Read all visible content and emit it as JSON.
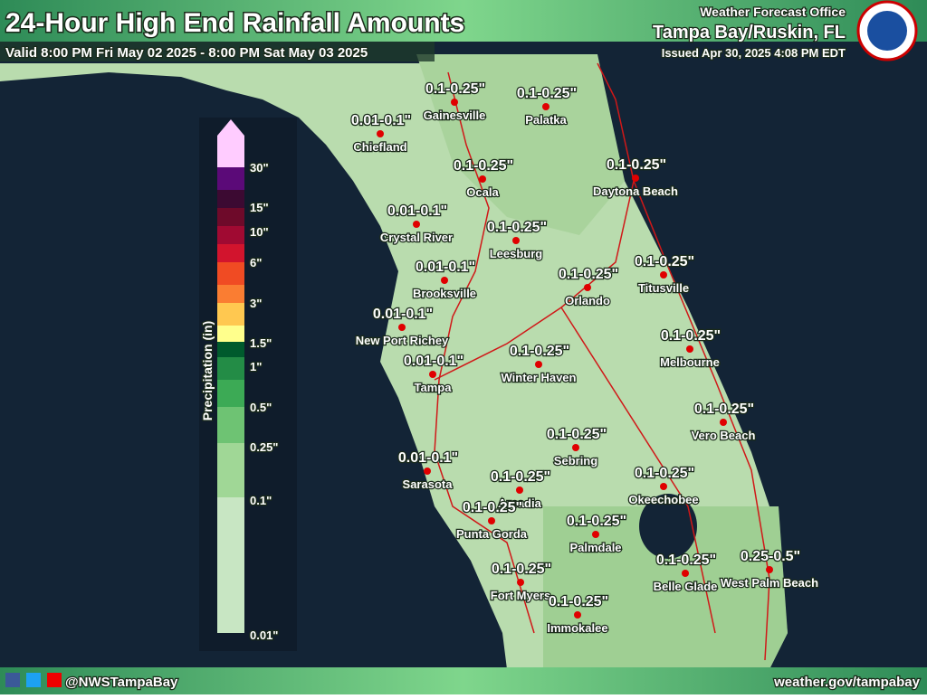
{
  "header": {
    "title": "24-Hour High End Rainfall Amounts",
    "valid": "Valid 8:00 PM Fri May 02 2025 - 8:00 PM Sat May 03 2025",
    "office": "Weather Forecast Office",
    "location": "Tampa Bay/Ruskin, FL",
    "issued": "Issued Apr 30, 2025 4:08 PM EDT"
  },
  "legend": {
    "title": "Precipitation (in)",
    "labels": [
      "30\"",
      "15\"",
      "10\"",
      "6\"",
      "3\"",
      "1.5\"",
      "1\"",
      "0.5\"",
      "0.25\"",
      "0.1\"",
      "0.01\""
    ]
  },
  "cities": [
    {
      "name": "Gainesville",
      "amount": "0.1-0.25\""
    },
    {
      "name": "Palatka",
      "amount": "0.1-0.25\""
    },
    {
      "name": "Chiefland",
      "amount": "0.01-0.1\""
    },
    {
      "name": "Ocala",
      "amount": "0.1-0.25\""
    },
    {
      "name": "Daytona Beach",
      "amount": "0.1-0.25\""
    },
    {
      "name": "Crystal River",
      "amount": "0.01-0.1\""
    },
    {
      "name": "Leesburg",
      "amount": "0.1-0.25\""
    },
    {
      "name": "Brooksville",
      "amount": "0.01-0.1\""
    },
    {
      "name": "Orlando",
      "amount": "0.1-0.25\""
    },
    {
      "name": "Titusville",
      "amount": "0.1-0.25\""
    },
    {
      "name": "New Port Richey",
      "amount": "0.01-0.1\""
    },
    {
      "name": "Winter Haven",
      "amount": "0.1-0.25\""
    },
    {
      "name": "Melbourne",
      "amount": "0.1-0.25\""
    },
    {
      "name": "Tampa",
      "amount": "0.01-0.1\""
    },
    {
      "name": "Vero Beach",
      "amount": "0.1-0.25\""
    },
    {
      "name": "Sebring",
      "amount": "0.1-0.25\""
    },
    {
      "name": "Sarasota",
      "amount": "0.01-0.1\""
    },
    {
      "name": "Arcadia",
      "amount": "0.1-0.25\""
    },
    {
      "name": "Okeechobee",
      "amount": "0.1-0.25\""
    },
    {
      "name": "Punta Gorda",
      "amount": "0.1-0.25\""
    },
    {
      "name": "Palmdale",
      "amount": "0.1-0.25\""
    },
    {
      "name": "Belle Glade",
      "amount": "0.1-0.25\""
    },
    {
      "name": "West Palm Beach",
      "amount": "0.25-0.5\""
    },
    {
      "name": "Fort Myers",
      "amount": "0.1-0.25\""
    },
    {
      "name": "Immokalee",
      "amount": "0.1-0.25\""
    }
  ],
  "footer": {
    "handle": "@NWSTampaBay",
    "url": "weather.gov/tampabay"
  }
}
